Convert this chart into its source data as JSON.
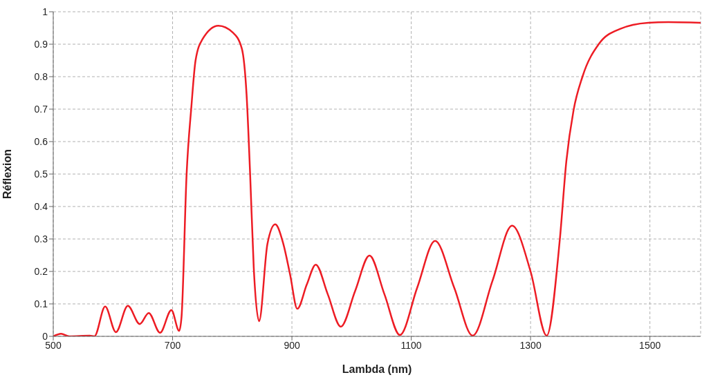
{
  "chart_data": {
    "type": "line",
    "xlabel": "Lambda (nm)",
    "ylabel": "Réflexion",
    "xlim": [
      500,
      1585
    ],
    "xticks": [
      500,
      700,
      900,
      1100,
      1300,
      1500
    ],
    "ylim": [
      0,
      1
    ],
    "yticks": [
      0,
      0.1,
      0.2,
      0.3,
      0.4,
      0.5,
      0.6,
      0.7,
      0.8,
      0.9,
      1
    ],
    "grid": true,
    "marker": "none",
    "line_style": "solid",
    "series": [
      {
        "color": "#ed1c24",
        "x": [
          500,
          513,
          527,
          561,
          569,
          587,
          605,
          625,
          645,
          660,
          679,
          698,
          711,
          715,
          723.5,
          731.6,
          738.5,
          750,
          776.8,
          801,
          816,
          824,
          830,
          836,
          845,
          859,
          872,
          885.6,
          897,
          909,
          925,
          940,
          960,
          982,
          1006,
          1030,
          1055,
          1081,
          1110,
          1140,
          1172,
          1203,
          1236,
          1269,
          1300,
          1327,
          1349,
          1360,
          1372,
          1387,
          1415,
          1450,
          1497,
          1531,
          1585
        ],
        "values": [
          0,
          0.008,
          0,
          0.002,
          0,
          0.092,
          0.013,
          0.094,
          0.038,
          0.072,
          0.011,
          0.081,
          0.017,
          0.06,
          0.5,
          0.71,
          0.85,
          0.915,
          0.957,
          0.936,
          0.887,
          0.745,
          0.498,
          0.213,
          0.047,
          0.285,
          0.345,
          0.285,
          0.19,
          0.085,
          0.16,
          0.221,
          0.13,
          0.03,
          0.14,
          0.249,
          0.13,
          0.004,
          0.15,
          0.294,
          0.15,
          0.002,
          0.17,
          0.341,
          0.2,
          0.002,
          0.298,
          0.54,
          0.696,
          0.8,
          0.902,
          0.947,
          0.966,
          0.968,
          0.966
        ]
      }
    ]
  }
}
